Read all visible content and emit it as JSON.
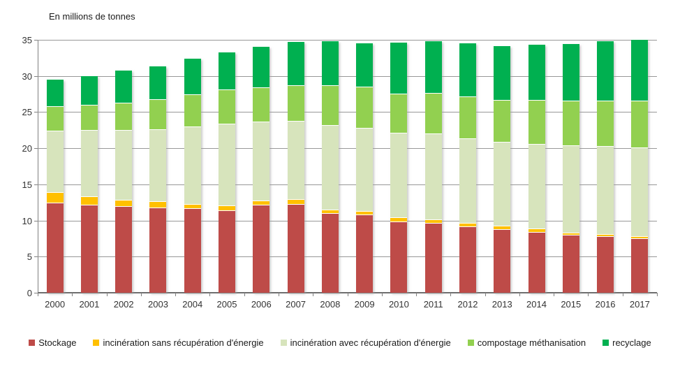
{
  "chart_data": {
    "type": "bar",
    "stacked": true,
    "title": "En millions de tonnes",
    "categories": [
      "2000",
      "2001",
      "2002",
      "2003",
      "2004",
      "2005",
      "2006",
      "2007",
      "2008",
      "2009",
      "2010",
      "2011",
      "2012",
      "2013",
      "2014",
      "2015",
      "2016",
      "2017"
    ],
    "series": [
      {
        "name": "Stockage",
        "color": "#BE4B48",
        "values": [
          12.5,
          12.2,
          12.0,
          11.8,
          11.7,
          11.4,
          12.2,
          12.3,
          11.0,
          10.8,
          9.9,
          9.7,
          9.2,
          8.8,
          8.4,
          8.0,
          7.8,
          7.5
        ]
      },
      {
        "name": "incinération sans récupération d'énergie",
        "color": "#FFC000",
        "values": [
          1.4,
          1.1,
          0.9,
          0.9,
          0.6,
          0.7,
          0.6,
          0.7,
          0.5,
          0.5,
          0.5,
          0.5,
          0.5,
          0.5,
          0.5,
          0.3,
          0.3,
          0.3
        ]
      },
      {
        "name": "incinération avec récupération d'énergie",
        "color": "#D7E4BC",
        "values": [
          8.5,
          9.2,
          9.6,
          9.9,
          10.7,
          11.3,
          10.9,
          10.8,
          11.7,
          11.5,
          11.7,
          11.8,
          11.7,
          11.6,
          11.7,
          12.1,
          12.2,
          12.3
        ]
      },
      {
        "name": "compostage méthanisation",
        "color": "#92D050",
        "values": [
          3.4,
          3.5,
          3.8,
          4.2,
          4.5,
          4.7,
          4.7,
          4.9,
          5.5,
          5.7,
          5.5,
          5.7,
          5.8,
          5.8,
          6.1,
          6.2,
          6.3,
          6.5
        ]
      },
      {
        "name": "recyclage",
        "color": "#00B050",
        "values": [
          3.7,
          4.0,
          4.4,
          4.5,
          4.9,
          5.2,
          5.6,
          6.0,
          6.1,
          6.0,
          7.0,
          7.1,
          7.3,
          7.4,
          7.6,
          7.8,
          8.2,
          8.4
        ]
      }
    ],
    "ylim": [
      0,
      35
    ],
    "yticks": [
      0,
      5,
      10,
      15,
      20,
      25,
      30,
      35
    ],
    "grid": true,
    "legend_position": "bottom"
  }
}
